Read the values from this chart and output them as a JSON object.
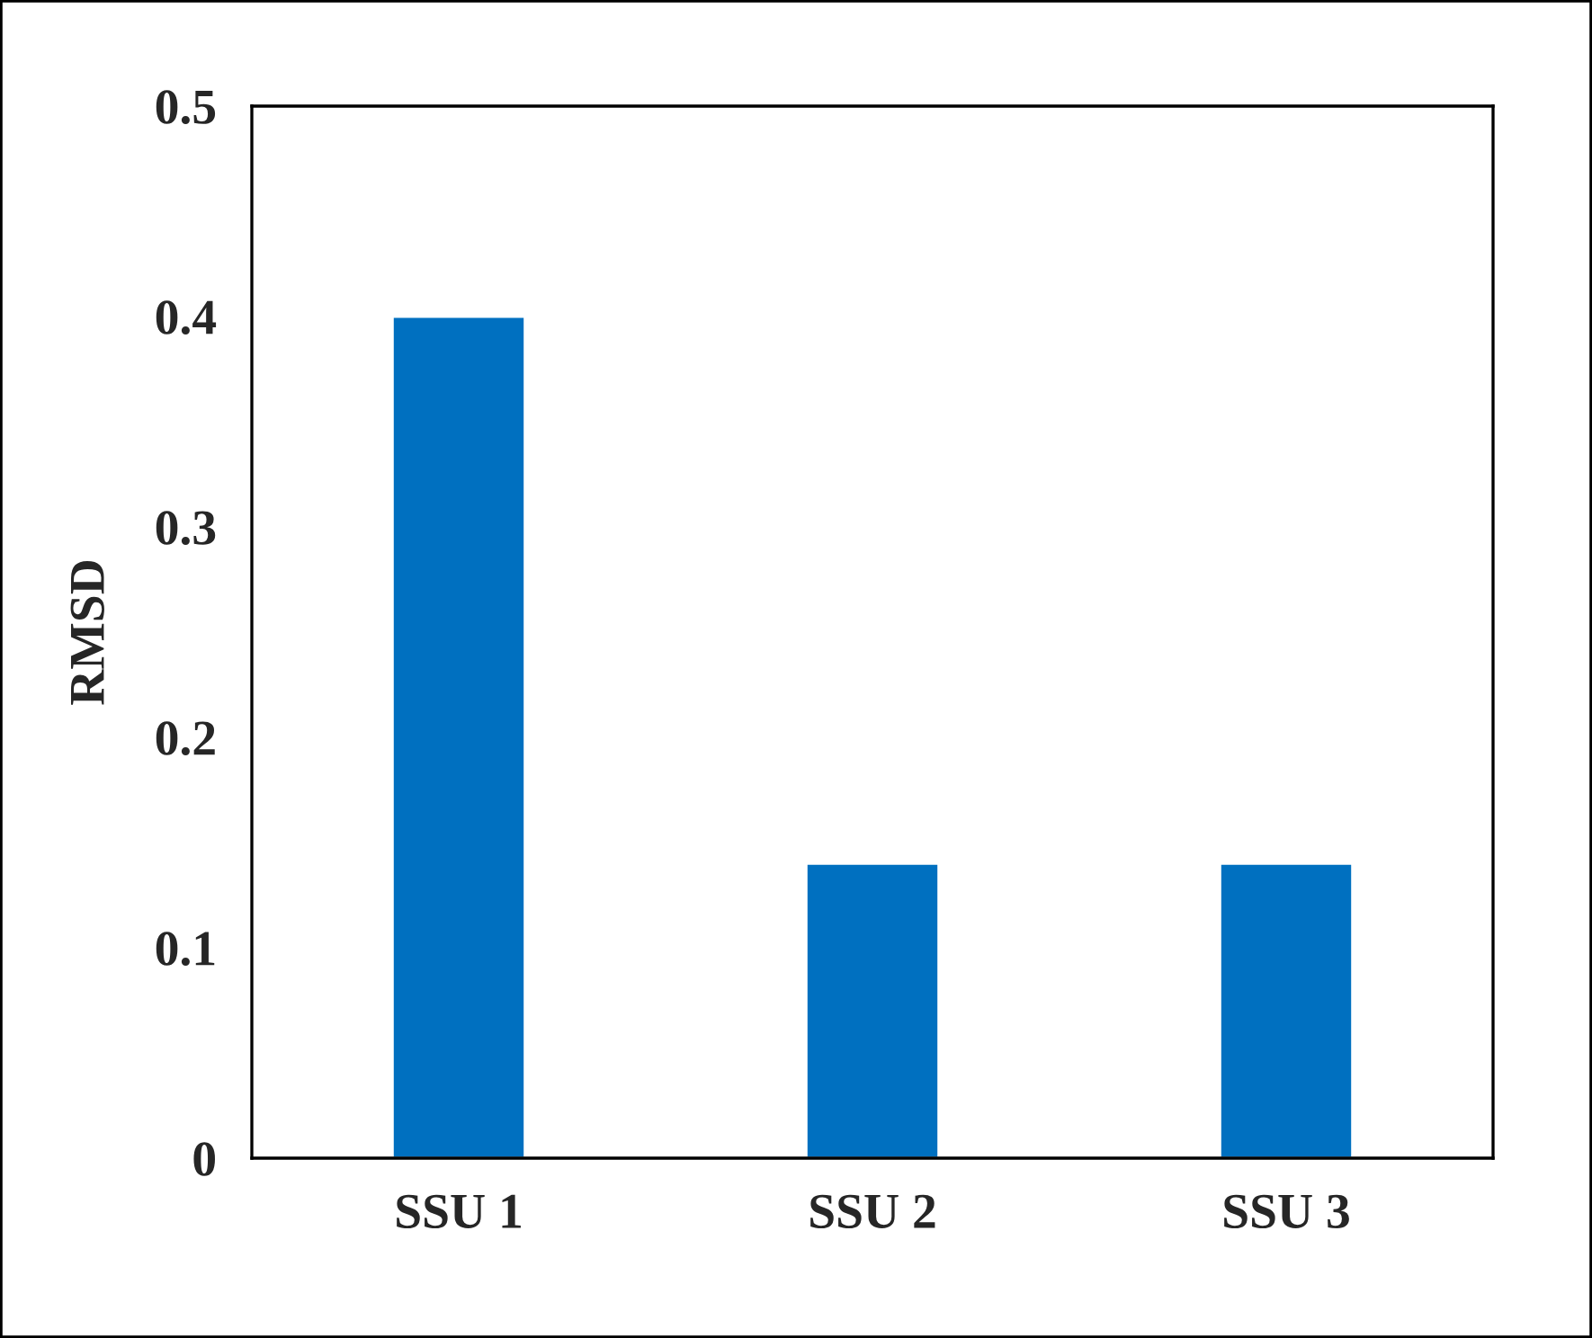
{
  "chart_data": {
    "type": "bar",
    "ylabel": "RMSD",
    "categories": [
      "SSU 1",
      "SSU 2",
      "SSU 3"
    ],
    "values": [
      0.4,
      0.14,
      0.14
    ],
    "color": "#0070c0",
    "ylim": [
      0,
      0.5
    ],
    "yticks": [
      {
        "value": 0,
        "label": "0"
      },
      0.1,
      0.2,
      0.3,
      0.4,
      0.5
    ],
    "grid": false,
    "legend": false
  }
}
